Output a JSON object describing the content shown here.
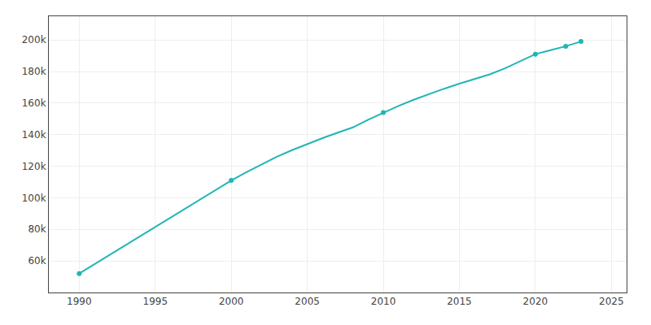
{
  "chart_data": {
    "type": "line",
    "x": [
      1990,
      1991,
      1992,
      1993,
      1994,
      1995,
      1996,
      1997,
      1998,
      1999,
      2000,
      2001,
      2002,
      2003,
      2004,
      2005,
      2006,
      2007,
      2008,
      2009,
      2010,
      2011,
      2012,
      2013,
      2014,
      2015,
      2016,
      2017,
      2018,
      2019,
      2020,
      2021,
      2022,
      2023
    ],
    "series": [
      {
        "type": "line",
        "color": "#22b5b5",
        "line_style": "solid",
        "values": [
          52000,
          57900,
          63800,
          69700,
          75600,
          81500,
          87400,
          93300,
          99200,
          105100,
          111000,
          116300,
          121300,
          126000,
          130200,
          134100,
          137800,
          141300,
          144600,
          149400,
          154000,
          158200,
          162100,
          165700,
          169100,
          172300,
          175300,
          178200,
          182000,
          186600,
          191000,
          193500,
          196000,
          199000
        ]
      },
      {
        "type": "scatter",
        "color": "#22b5b5",
        "marker": "circle",
        "x": [
          1990,
          2000,
          2010,
          2020,
          2022,
          2023
        ],
        "values": [
          52000,
          111000,
          154000,
          191000,
          196000,
          199000
        ]
      }
    ],
    "xlim": [
      1988,
      2026
    ],
    "ylim": [
      40000,
      215000
    ],
    "xticks": [
      1990,
      1995,
      2000,
      2005,
      2010,
      2015,
      2020,
      2025
    ],
    "yticks": [
      {
        "value": 60000,
        "label": "60k"
      },
      {
        "value": 80000,
        "label": "80k"
      },
      {
        "value": 100000,
        "label": "100k"
      },
      {
        "value": 120000,
        "label": "120k"
      },
      {
        "value": 140000,
        "label": "140k"
      },
      {
        "value": 160000,
        "label": "160k"
      },
      {
        "value": 180000,
        "label": "180k"
      },
      {
        "value": 200000,
        "label": "200k"
      }
    ],
    "grid": true
  }
}
